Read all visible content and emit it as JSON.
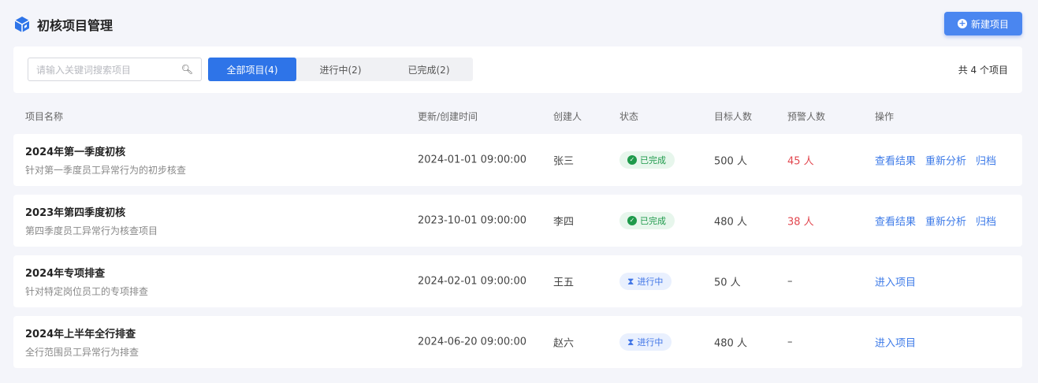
{
  "header": {
    "title": "初核项目管理",
    "icon": "cube-icon",
    "new_button": "新建项目"
  },
  "toolbar": {
    "search_placeholder": "请输入关键词搜索项目",
    "tabs": [
      {
        "label": "全部项目(4)",
        "active": true
      },
      {
        "label": "进行中(2)"
      },
      {
        "label": "已完成(2)"
      }
    ],
    "count": "共 4 个项目"
  },
  "table": {
    "headers": [
      "项目名称",
      "更新/创建时间",
      "创建人",
      "状态",
      "目标人数",
      "预警人数",
      "操作"
    ],
    "rows": [
      {
        "name": "2024年第一季度初核",
        "desc": "针对第一季度员工异常行为的初步核查",
        "time": "2024-01-01  09:00:00",
        "creator": "张三",
        "status": "已完成",
        "target": "500 人",
        "warn": "45 人",
        "actions": [
          "查看结果",
          "重新分析",
          "归档"
        ]
      },
      {
        "name": "2023年第四季度初核",
        "desc": "第四季度员工异常行为核查项目",
        "time": "2023-10-01  09:00:00",
        "creator": "李四",
        "status": "已完成",
        "target": "480 人",
        "warn": "38 人",
        "actions": [
          "查看结果",
          "重新分析",
          "归档"
        ]
      },
      {
        "name": "2024年专项排查",
        "desc": "针对特定岗位员工的专项排查",
        "time": "2024-02-01  09:00:00",
        "creator": "王五",
        "status": "进行中",
        "target": "50 人",
        "warn": "–",
        "actions": [
          "进入项目"
        ]
      },
      {
        "name": "2024年上半年全行排查",
        "desc": "全行范围员工异常行为排查",
        "time": "2024-06-20  09:00:00",
        "creator": "赵六",
        "status": "进行中",
        "target": "480 人",
        "warn": "–",
        "actions": [
          "进入项目"
        ]
      }
    ]
  },
  "colors": {
    "primary": "#2e74e8",
    "done": "#1f9a4b",
    "warn": "#e2474f"
  }
}
